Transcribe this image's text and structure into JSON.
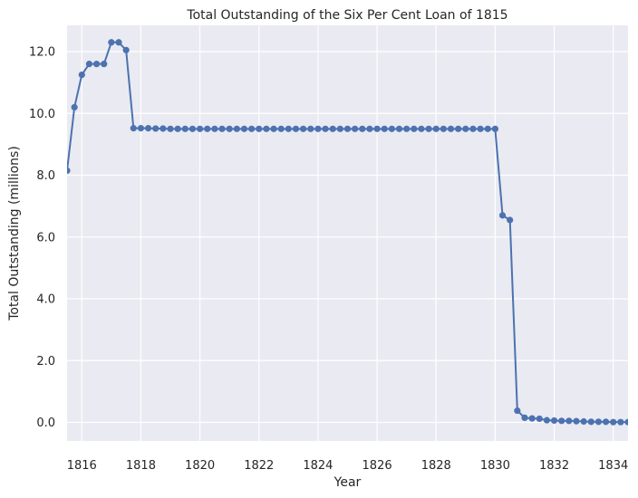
{
  "chart_data": {
    "type": "line",
    "title": "Total Outstanding of the Six Per Cent Loan of 1815",
    "xlabel": "Year",
    "ylabel": "Total Outstanding (millions)",
    "xlim": [
      1815.5,
      1834.5
    ],
    "ylim": [
      -0.6,
      12.85
    ],
    "x_ticks": [
      1816,
      1818,
      1820,
      1822,
      1824,
      1826,
      1828,
      1830,
      1832,
      1834
    ],
    "y_ticks": [
      0,
      2,
      4,
      6,
      8,
      10,
      12
    ],
    "x_tick_labels": [
      "1816",
      "1818",
      "1820",
      "1822",
      "1824",
      "1826",
      "1828",
      "1830",
      "1832",
      "1834"
    ],
    "y_tick_labels": [
      "0.0",
      "2.0",
      "4.0",
      "6.0",
      "8.0",
      "10.0",
      "12.0"
    ],
    "grid": true,
    "series": [
      {
        "color": "#4c72b0",
        "marker": "circle",
        "x": [
          1815.5,
          1815.75,
          1816.0,
          1816.25,
          1816.5,
          1816.75,
          1817.0,
          1817.25,
          1817.5,
          1817.75,
          1818.0,
          1818.25,
          1818.5,
          1818.75,
          1819.0,
          1819.25,
          1819.5,
          1819.75,
          1820.0,
          1820.25,
          1820.5,
          1820.75,
          1821.0,
          1821.25,
          1821.5,
          1821.75,
          1822.0,
          1822.25,
          1822.5,
          1822.75,
          1823.0,
          1823.25,
          1823.5,
          1823.75,
          1824.0,
          1824.25,
          1824.5,
          1824.75,
          1825.0,
          1825.25,
          1825.5,
          1825.75,
          1826.0,
          1826.25,
          1826.5,
          1826.75,
          1827.0,
          1827.25,
          1827.5,
          1827.75,
          1828.0,
          1828.25,
          1828.5,
          1828.75,
          1829.0,
          1829.25,
          1829.5,
          1829.75,
          1830.0,
          1830.25,
          1830.5,
          1830.75,
          1831.0,
          1831.25,
          1831.5,
          1831.75,
          1832.0,
          1832.25,
          1832.5,
          1832.75,
          1833.0,
          1833.25,
          1833.5,
          1833.75,
          1834.0,
          1834.25,
          1834.5
        ],
        "y": [
          8.15,
          10.2,
          11.25,
          11.6,
          11.6,
          11.6,
          12.3,
          12.3,
          12.05,
          9.52,
          9.52,
          9.52,
          9.51,
          9.51,
          9.5,
          9.5,
          9.5,
          9.5,
          9.5,
          9.5,
          9.5,
          9.5,
          9.5,
          9.5,
          9.5,
          9.5,
          9.5,
          9.5,
          9.5,
          9.5,
          9.5,
          9.5,
          9.5,
          9.5,
          9.5,
          9.5,
          9.5,
          9.5,
          9.5,
          9.5,
          9.5,
          9.5,
          9.5,
          9.5,
          9.5,
          9.5,
          9.5,
          9.5,
          9.5,
          9.5,
          9.5,
          9.5,
          9.5,
          9.5,
          9.5,
          9.5,
          9.5,
          9.5,
          9.5,
          6.7,
          6.55,
          0.38,
          0.15,
          0.13,
          0.12,
          0.07,
          0.06,
          0.05,
          0.05,
          0.04,
          0.03,
          0.02,
          0.02,
          0.02,
          0.01,
          0.01,
          0.01
        ]
      }
    ]
  },
  "style": {
    "plot_background": "#eaeaf2",
    "grid_color": "#ffffff",
    "text_color": "#262626",
    "line_color": "#4c72b0"
  }
}
